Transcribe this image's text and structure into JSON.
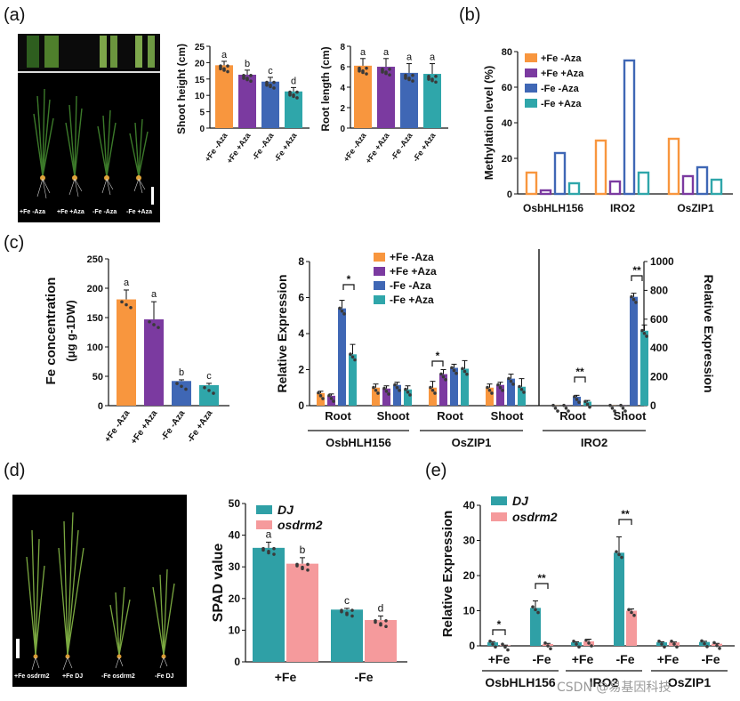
{
  "colors": {
    "fe_minus_aza": "#F8963E",
    "fe_plus_aza": "#7B3AA0",
    "nofe_minus_aza": "#3F67B5",
    "nofe_plus_aza": "#2FA6AA",
    "dj": "#2FA0A6",
    "osdrm2": "#F59A9C"
  },
  "panel_letters": [
    "(a)",
    "(b)",
    "(c)",
    "(d)",
    "(e)"
  ],
  "photo_a": {
    "labels": [
      "+Fe -Aza",
      "+Fe +Aza",
      "-Fe -Aza",
      "-Fe +Aza"
    ]
  },
  "photo_d": {
    "labels": [
      "+Fe osdrm2",
      "+Fe DJ",
      "-Fe osdrm2",
      "-Fe DJ"
    ]
  },
  "watermark": "CSDN @易基因科技",
  "chart_data": [
    {
      "id": "a-shoot",
      "type": "bar",
      "ylabel": "Shoot height (cm)",
      "ylim": [
        0,
        25
      ],
      "yticks": [
        0,
        5,
        10,
        15,
        20,
        25
      ],
      "categories": [
        "+Fe -Aza",
        "+Fe +Aza",
        "-Fe -Aza",
        "-Fe +Aza"
      ],
      "values": [
        19.2,
        16.3,
        14.2,
        11.2
      ],
      "errors": [
        1.2,
        1.4,
        1.3,
        1.2
      ],
      "letters": [
        "a",
        "b",
        "c",
        "d"
      ]
    },
    {
      "id": "a-root",
      "type": "bar",
      "ylabel": "Root length (cm)",
      "ylim": [
        0,
        8
      ],
      "yticks": [
        0,
        2,
        4,
        6,
        8
      ],
      "categories": [
        "+Fe -Aza",
        "+Fe +Aza",
        "-Fe -Aza",
        "-Fe +Aza"
      ],
      "values": [
        6.1,
        6.0,
        5.4,
        5.3
      ],
      "errors": [
        0.7,
        0.8,
        0.9,
        1.0
      ],
      "letters": [
        "a",
        "a",
        "a",
        "a"
      ]
    },
    {
      "id": "b",
      "type": "bar",
      "ylabel": "Methylation level (%)",
      "ylim": [
        0,
        80
      ],
      "yticks": [
        0,
        20,
        40,
        60,
        80
      ],
      "categories": [
        "OsbHLH156",
        "IRO2",
        "OsZIP1"
      ],
      "series": [
        {
          "name": "+Fe -Aza",
          "values": [
            12,
            30,
            31
          ]
        },
        {
          "name": "+Fe +Aza",
          "values": [
            2,
            7,
            10
          ]
        },
        {
          "name": "-Fe -Aza",
          "values": [
            23,
            75,
            15
          ]
        },
        {
          "name": "-Fe +Aza",
          "values": [
            6,
            12,
            8
          ]
        }
      ],
      "legend": "top-left"
    },
    {
      "id": "c-fe",
      "type": "bar",
      "ylabel": "Fe concentration",
      "ylabel2": "(μg g-1DW)",
      "ylim": [
        0,
        250
      ],
      "yticks": [
        0,
        50,
        100,
        150,
        200,
        250
      ],
      "categories": [
        "+Fe -Aza",
        "+Fe +Aza",
        "-Fe -Aza",
        "-Fe +Aza"
      ],
      "values": [
        181,
        147,
        42,
        35
      ],
      "errors": [
        16,
        30,
        2,
        3
      ],
      "letters": [
        "a",
        "a",
        "b",
        "c"
      ]
    },
    {
      "id": "c-expr",
      "type": "bar",
      "ylabel": "Relative Expression",
      "ylabel_right": "Relative Expression",
      "ylim": [
        0,
        8
      ],
      "yticks": [
        0,
        2,
        4,
        6,
        8
      ],
      "ylim_right": [
        0,
        1000
      ],
      "yticks_right": [
        0,
        200,
        400,
        600,
        800,
        1000
      ],
      "groups": [
        {
          "gene": "OsbHLH156",
          "tissues": [
            "Root",
            "Shoot"
          ]
        },
        {
          "gene": "OsZIP1",
          "tissues": [
            "Root",
            "Shoot"
          ]
        },
        {
          "gene": "IRO2",
          "tissues": [
            "Root",
            "Shoot"
          ]
        }
      ],
      "series": [
        {
          "name": "+Fe -Aza",
          "values": [
            0.7,
            1.0,
            1.0,
            1.0,
            1.0,
            1.0
          ]
        },
        {
          "name": "+Fe +Aza",
          "values": [
            0.55,
            0.95,
            1.75,
            1.15,
            1.0,
            1.0
          ]
        },
        {
          "name": "-Fe -Aza",
          "values": [
            5.4,
            1.15,
            2.1,
            1.5,
            62,
            755
          ]
        },
        {
          "name": "-Fe +Aza",
          "values": [
            2.85,
            0.9,
            2.05,
            1.05,
            28,
            520
          ]
        }
      ],
      "errors": [
        [
          0.1,
          0.2,
          0.35,
          0.2,
          0,
          0
        ],
        [
          0.1,
          0.15,
          0.25,
          0.15,
          0,
          0
        ],
        [
          0.45,
          0.15,
          0.2,
          0.25,
          10,
          25
        ],
        [
          0.55,
          0.2,
          0.45,
          0.45,
          8,
          40
        ]
      ],
      "right_axis_groups": [
        "IRO2"
      ],
      "significance": [
        {
          "between": [
            "-Fe -Aza",
            "-Fe +Aza"
          ],
          "at": "OsbHLH156 Root",
          "label": "*"
        },
        {
          "between": [
            "+Fe -Aza",
            "+Fe +Aza"
          ],
          "at": "OsZIP1 Root",
          "label": "*"
        },
        {
          "between": [
            "-Fe -Aza",
            "-Fe +Aza"
          ],
          "at": "IRO2 Root",
          "label": "**"
        },
        {
          "between": [
            "-Fe -Aza",
            "-Fe +Aza"
          ],
          "at": "IRO2 Shoot",
          "label": "**"
        }
      ],
      "legend": "top-center"
    },
    {
      "id": "d",
      "type": "bar",
      "ylabel": "SPAD value",
      "ylim": [
        0,
        50
      ],
      "yticks": [
        0,
        10,
        20,
        30,
        40,
        50
      ],
      "categories": [
        "+Fe",
        "-Fe"
      ],
      "series": [
        {
          "name": "DJ",
          "values": [
            36.0,
            16.5
          ]
        },
        {
          "name": "osdrm2",
          "values": [
            31.0,
            13.2
          ]
        }
      ],
      "errors": [
        [
          1.8,
          0.4
        ],
        [
          1.9,
          1.3
        ]
      ],
      "letters": [
        [
          "a",
          "c"
        ],
        [
          "b",
          "d"
        ]
      ],
      "legend": "top-left"
    },
    {
      "id": "e",
      "type": "bar",
      "ylabel": "Relative Expression",
      "ylim": [
        0,
        40
      ],
      "yticks": [
        0,
        10,
        20,
        30,
        40
      ],
      "groups": [
        {
          "gene": "OsbHLH156",
          "conditions": [
            "+Fe",
            "-Fe"
          ]
        },
        {
          "gene": "IRO2",
          "conditions": [
            "+Fe",
            "-Fe"
          ]
        },
        {
          "gene": "OsZIP1",
          "conditions": [
            "+Fe",
            "-Fe"
          ]
        }
      ],
      "series": [
        {
          "name": "DJ",
          "values": [
            1.0,
            10.8,
            1.0,
            26.5,
            1.0,
            1.1
          ]
        },
        {
          "name": "osdrm2",
          "values": [
            0.15,
            0.5,
            1.3,
            10.0,
            1.0,
            0.6
          ]
        }
      ],
      "errors": [
        [
          0.2,
          2.0,
          0.15,
          4.5,
          0.15,
          0.2
        ],
        [
          0.05,
          0.2,
          0.6,
          0.5,
          0.1,
          0.1
        ]
      ],
      "significance": [
        {
          "at": "OsbHLH156 +Fe",
          "label": "*"
        },
        {
          "at": "OsbHLH156 -Fe",
          "label": "**"
        },
        {
          "at": "IRO2 -Fe",
          "label": "**"
        }
      ],
      "legend": "top-left"
    }
  ]
}
